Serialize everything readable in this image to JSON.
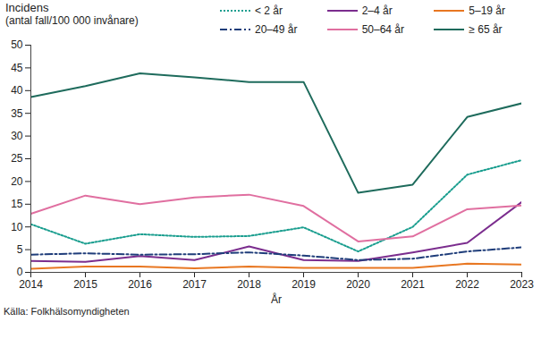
{
  "chart_data": {
    "type": "line",
    "y_label": [
      "Incidens",
      "(antal fall/100 000 invånare)"
    ],
    "x_label": "År",
    "caption": "Källa: Folkhälsomyndigheten",
    "x": [
      2014,
      2015,
      2016,
      2017,
      2018,
      2019,
      2020,
      2021,
      2022,
      2023
    ],
    "xlim": [
      2014,
      2023
    ],
    "xticks": [
      2014,
      2015,
      2016,
      2017,
      2018,
      2019,
      2020,
      2021,
      2022,
      2023
    ],
    "ylim": [
      0,
      50
    ],
    "yticks": [
      0,
      5,
      10,
      15,
      20,
      25,
      30,
      35,
      40,
      45,
      50
    ],
    "grid": false,
    "legend": "top",
    "series": [
      {
        "name": "< 2 år",
        "color": "#1a9e8f",
        "line_style": "dotted",
        "values": [
          10.6,
          6.3,
          8.4,
          7.8,
          8.0,
          9.9,
          4.6,
          10.0,
          21.5,
          24.7
        ]
      },
      {
        "name": "2–4 år",
        "color": "#7b2d8e",
        "line_style": "solid",
        "values": [
          2.5,
          2.3,
          3.6,
          2.7,
          5.7,
          2.7,
          2.5,
          4.4,
          6.5,
          15.5
        ]
      },
      {
        "name": "5–19 år",
        "color": "#e87722",
        "line_style": "solid",
        "values": [
          0.8,
          1.3,
          1.3,
          0.9,
          1.3,
          1.0,
          1.0,
          1.0,
          1.9,
          1.7
        ]
      },
      {
        "name": "20–49 år",
        "color": "#1f3d7a",
        "line_style": "dash-dot",
        "values": [
          3.9,
          4.2,
          3.9,
          4.0,
          4.4,
          3.7,
          2.7,
          3.0,
          4.6,
          5.5
        ]
      },
      {
        "name": "50–64 år",
        "color": "#e06fa0",
        "line_style": "solid",
        "values": [
          12.9,
          16.9,
          15.0,
          16.5,
          17.1,
          14.6,
          6.8,
          7.9,
          13.9,
          14.7
        ]
      },
      {
        "name": "≥ 65 år",
        "color": "#1e6b5c",
        "line_style": "solid",
        "values": [
          38.6,
          41.0,
          43.8,
          42.9,
          41.9,
          41.9,
          17.5,
          19.3,
          34.2,
          37.2
        ]
      }
    ]
  }
}
